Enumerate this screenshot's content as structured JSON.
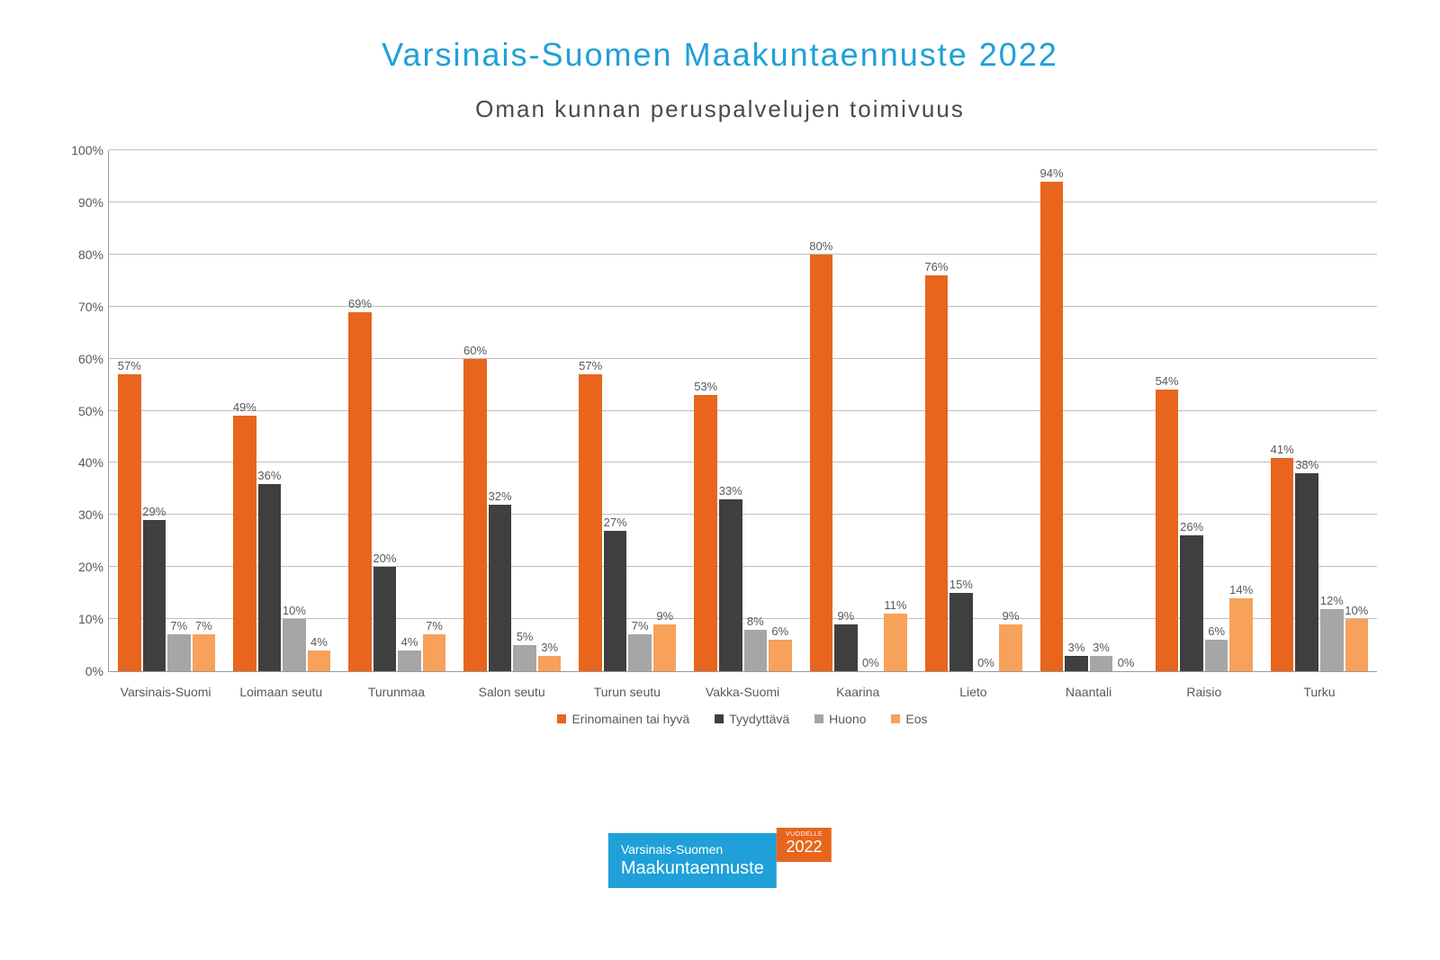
{
  "title": "Varsinais-Suomen Maakuntaennuste 2022",
  "subtitle": "Oman kunnan peruspalvelujen toimivuus",
  "title_color": "#1fa0d8",
  "title_fontsize": 36,
  "subtitle_color": "#4a4a4a",
  "subtitle_fontsize": 26,
  "chart": {
    "type": "bar",
    "background_color": "#ffffff",
    "grid_color": "#bfbfbf",
    "axis_color": "#9a9a9a",
    "ylim": [
      0,
      100
    ],
    "ytick_step": 10,
    "ytick_suffix": "%",
    "bar_label_suffix": "%",
    "label_fontsize": 14,
    "bar_label_fontsize": 13,
    "categories": [
      "Varsinais-Suomi",
      "Loimaan seutu",
      "Turunmaa",
      "Salon seutu",
      "Turun seutu",
      "Vakka-Suomi",
      "Kaarina",
      "Lieto",
      "Naantali",
      "Raisio",
      "Turku"
    ],
    "series": [
      {
        "name": "Erinomainen tai hyvä",
        "color": "#e8651d",
        "values": [
          57,
          49,
          69,
          60,
          57,
          53,
          80,
          76,
          94,
          54,
          41
        ]
      },
      {
        "name": "Tyydyttävä",
        "color": "#3f3f3f",
        "values": [
          29,
          36,
          20,
          32,
          27,
          33,
          9,
          15,
          3,
          26,
          38
        ]
      },
      {
        "name": "Huono",
        "color": "#a6a6a6",
        "values": [
          7,
          10,
          4,
          5,
          7,
          8,
          0,
          0,
          3,
          6,
          12
        ]
      },
      {
        "name": "Eos",
        "color": "#f7a15b",
        "values": [
          7,
          4,
          7,
          3,
          9,
          6,
          11,
          9,
          0,
          14,
          10
        ]
      }
    ]
  },
  "logo": {
    "blue_bg": "#1fa0d8",
    "orange_bg": "#e8651d",
    "line1": "Varsinais-Suomen",
    "line2": "Maakuntaennuste",
    "badge_top": "VUODELLE",
    "badge_year": "2022"
  }
}
